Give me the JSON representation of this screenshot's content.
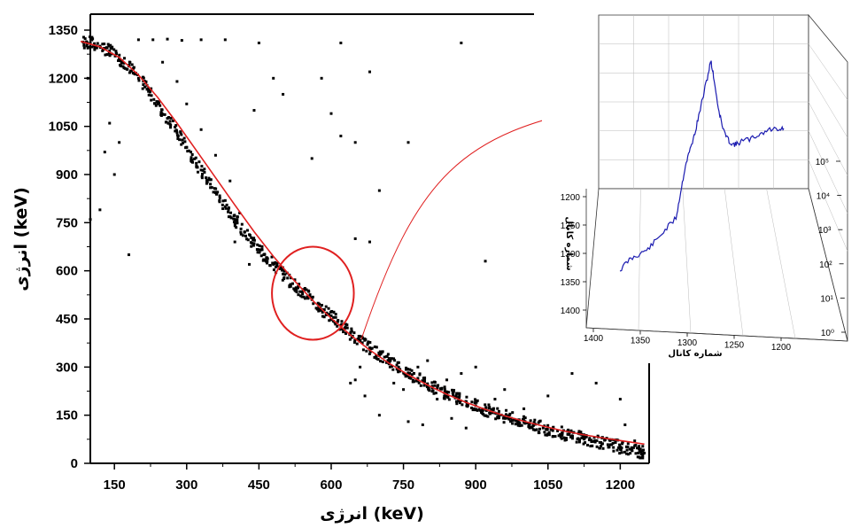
{
  "chart_data": [
    {
      "type": "scatter",
      "title": "",
      "xlabel": "انرژی (keV)",
      "ylabel": "انرژی (keV)",
      "xlim": [
        100,
        1260
      ],
      "ylim": [
        0,
        1350
      ],
      "x_ticks": [
        "150",
        "300",
        "450",
        "600",
        "750",
        "900",
        "1050",
        "1200"
      ],
      "y_ticks": [
        "0",
        "150",
        "300",
        "450",
        "600",
        "750",
        "900",
        "1050",
        "1200",
        "1350"
      ],
      "grid": false,
      "series": [
        {
          "kind": "points",
          "color": "#000000",
          "description_band": "dense Compton-edge band decreasing from (80,1315) to (1250,30)",
          "points": [
            [
              85,
              1313
            ],
            [
              100,
              1310
            ],
            [
              120,
              1300
            ],
            [
              140,
              1285
            ],
            [
              160,
              1262
            ],
            [
              180,
              1238
            ],
            [
              200,
              1200
            ],
            [
              220,
              1165
            ],
            [
              240,
              1120
            ],
            [
              260,
              1075
            ],
            [
              280,
              1030
            ],
            [
              300,
              985
            ],
            [
              320,
              935
            ],
            [
              340,
              890
            ],
            [
              360,
              845
            ],
            [
              380,
              800
            ],
            [
              400,
              760
            ],
            [
              420,
              720
            ],
            [
              440,
              685
            ],
            [
              460,
              650
            ],
            [
              480,
              620
            ],
            [
              500,
              590
            ],
            [
              520,
              560
            ],
            [
              540,
              535
            ],
            [
              560,
              510
            ],
            [
              580,
              480
            ],
            [
              600,
              460
            ],
            [
              620,
              430
            ],
            [
              640,
              405
            ],
            [
              660,
              380
            ],
            [
              680,
              360
            ],
            [
              700,
              340
            ],
            [
              720,
              320
            ],
            [
              740,
              300
            ],
            [
              760,
              282
            ],
            [
              780,
              265
            ],
            [
              800,
              248
            ],
            [
              820,
              232
            ],
            [
              840,
              218
            ],
            [
              860,
              205
            ],
            [
              880,
              192
            ],
            [
              900,
              180
            ],
            [
              920,
              168
            ],
            [
              940,
              157
            ],
            [
              960,
              147
            ],
            [
              980,
              137
            ],
            [
              1000,
              128
            ],
            [
              1020,
              119
            ],
            [
              1040,
              110
            ],
            [
              1060,
              102
            ],
            [
              1080,
              94
            ],
            [
              1100,
              86
            ],
            [
              1120,
              79
            ],
            [
              1140,
              72
            ],
            [
              1160,
              65
            ],
            [
              1180,
              58
            ],
            [
              1200,
              51
            ],
            [
              1220,
              44
            ],
            [
              1240,
              37
            ],
            [
              1250,
              32
            ],
            [
              200,
              1320
            ],
            [
              230,
              1320
            ],
            [
              260,
              1322
            ],
            [
              290,
              1318
            ],
            [
              250,
              1250
            ],
            [
              280,
              1190
            ],
            [
              300,
              1120
            ],
            [
              330,
              1040
            ],
            [
              360,
              960
            ],
            [
              390,
              880
            ],
            [
              95,
              1200
            ],
            [
              100,
              760
            ],
            [
              130,
              970
            ],
            [
              150,
              900
            ],
            [
              180,
              650
            ],
            [
              120,
              790
            ],
            [
              140,
              1060
            ],
            [
              160,
              1000
            ],
            [
              330,
              1320
            ],
            [
              380,
              1320
            ],
            [
              440,
              1100
            ],
            [
              560,
              950
            ],
            [
              620,
              1310
            ],
            [
              680,
              1220
            ],
            [
              620,
              1020
            ],
            [
              650,
              1000
            ],
            [
              580,
              1200
            ],
            [
              760,
              1000
            ],
            [
              870,
              1310
            ],
            [
              920,
              630
            ],
            [
              650,
              700
            ],
            [
              680,
              690
            ],
            [
              500,
              1150
            ],
            [
              480,
              1200
            ],
            [
              450,
              1310
            ],
            [
              410,
              780
            ],
            [
              400,
              690
            ],
            [
              430,
              620
            ],
            [
              600,
              1090
            ],
            [
              700,
              850
            ],
            [
              650,
              260
            ],
            [
              670,
              210
            ],
            [
              700,
              150
            ],
            [
              720,
              310
            ],
            [
              760,
              130
            ],
            [
              790,
              120
            ],
            [
              820,
              200
            ],
            [
              850,
              140
            ],
            [
              880,
              110
            ],
            [
              960,
              230
            ],
            [
              1000,
              170
            ],
            [
              1050,
              210
            ],
            [
              1100,
              280
            ],
            [
              1120,
              90
            ],
            [
              1150,
              250
            ],
            [
              1200,
              200
            ],
            [
              1210,
              120
            ],
            [
              1230,
              70
            ],
            [
              640,
              250
            ],
            [
              660,
              300
            ],
            [
              690,
              330
            ],
            [
              730,
              250
            ],
            [
              750,
              230
            ],
            [
              780,
              300
            ],
            [
              800,
              320
            ],
            [
              840,
              260
            ],
            [
              870,
              280
            ],
            [
              900,
              300
            ],
            [
              940,
              200
            ],
            [
              970,
              150
            ]
          ]
        },
        {
          "kind": "fit-line",
          "color": "#e02020",
          "points": [
            [
              80,
              1315
            ],
            [
              120,
              1298
            ],
            [
              160,
              1265
            ],
            [
              200,
              1210
            ],
            [
              240,
              1140
            ],
            [
              280,
              1060
            ],
            [
              320,
              975
            ],
            [
              360,
              890
            ],
            [
              400,
              805
            ],
            [
              440,
              722
            ],
            [
              480,
              645
            ],
            [
              520,
              575
            ],
            [
              560,
              510
            ],
            [
              600,
              452
            ],
            [
              640,
              400
            ],
            [
              680,
              353
            ],
            [
              720,
              312
            ],
            [
              760,
              276
            ],
            [
              800,
              244
            ],
            [
              840,
              215
            ],
            [
              880,
              190
            ],
            [
              920,
              168
            ],
            [
              960,
              148
            ],
            [
              1000,
              131
            ],
            [
              1040,
              116
            ],
            [
              1080,
              102
            ],
            [
              1120,
              90
            ],
            [
              1160,
              80
            ],
            [
              1200,
              71
            ],
            [
              1250,
              60
            ]
          ]
        }
      ],
      "annotations": [
        {
          "type": "ellipse",
          "color": "#e02020",
          "center": [
            562,
            530
          ],
          "rx": 85,
          "ry": 145
        }
      ]
    },
    {
      "type": "line",
      "title": "",
      "xlabel": "شماره کانال",
      "ylabel": "شماره کانال",
      "zlabel": "",
      "x_ticks": [
        "1400",
        "1350",
        "1300",
        "1250",
        "1200"
      ],
      "y_ticks": [
        "1200",
        "1250",
        "1300",
        "1350",
        "1400"
      ],
      "z_ticks": [
        "10⁰",
        "10¹",
        "10²",
        "10³",
        "10⁴",
        "10⁵"
      ],
      "z_scale": "log",
      "series": [
        {
          "color": "#1a1ab0",
          "points": [
            [
              1380,
              1330
            ],
            [
              1370,
              1320
            ],
            [
              1360,
              1315
            ],
            [
              1350,
              1310
            ],
            [
              1340,
              1300
            ],
            [
              1330,
              1290
            ],
            [
              1320,
              1280
            ],
            [
              1315,
              1255
            ],
            [
              1310,
              1230
            ],
            [
              1305,
              1215
            ],
            [
              1300,
              1200
            ],
            [
              1295,
              1180
            ],
            [
              1290,
              1160
            ],
            [
              1285,
              1140
            ],
            [
              1283,
              1130
            ],
            [
              1280,
              1145
            ],
            [
              1275,
              1175
            ],
            [
              1270,
              1195
            ],
            [
              1265,
              1205
            ],
            [
              1260,
              1210
            ],
            [
              1255,
              1210
            ],
            [
              1250,
              1207
            ],
            [
              1240,
              1205
            ],
            [
              1230,
              1200
            ],
            [
              1220,
              1196
            ],
            [
              1210,
              1195
            ],
            [
              1205,
              1195
            ]
          ]
        }
      ]
    }
  ]
}
